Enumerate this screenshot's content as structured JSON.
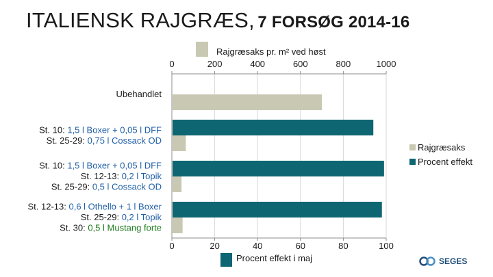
{
  "title_main": "ITALIENSK RAJGRÆS,",
  "title_sub": "7 FORSØG 2014-16",
  "logo_text": "SEGES",
  "colors": {
    "rajgraesaks": "#c9c8b2",
    "procent_effekt": "#0d6672",
    "text_green": "#1a7a1a",
    "text_blue": "#1f5fa8"
  },
  "chart_data": {
    "type": "bar",
    "orientation": "horizontal",
    "categories": [
      [
        {
          "text": "Ubehandlet",
          "color": "default"
        }
      ],
      [
        {
          "parts": [
            {
              "text": "St. 10: ",
              "color": "default"
            },
            {
              "text": "1,5 l Boxer + 0,05 l DFF",
              "color": "blue"
            }
          ]
        },
        {
          "parts": [
            {
              "text": "St. 25-29: ",
              "color": "default"
            },
            {
              "text": "0,75 l Cossack OD",
              "color": "blue"
            }
          ]
        }
      ],
      [
        {
          "parts": [
            {
              "text": "St. 10: ",
              "color": "default"
            },
            {
              "text": "1,5 l Boxer + 0,05 l DFF",
              "color": "blue"
            }
          ]
        },
        {
          "parts": [
            {
              "text": "St. 12-13: ",
              "color": "default"
            },
            {
              "text": "0,2 l Topik",
              "color": "blue"
            }
          ]
        },
        {
          "parts": [
            {
              "text": "St. 25-29: ",
              "color": "default"
            },
            {
              "text": "0,5 l Cossack OD",
              "color": "blue"
            }
          ]
        }
      ],
      [
        {
          "parts": [
            {
              "text": "St. 12-13: ",
              "color": "default"
            },
            {
              "text": "0,6 l Othello + 1 l Boxer",
              "color": "blue"
            }
          ]
        },
        {
          "parts": [
            {
              "text": "St. 25-29: ",
              "color": "default"
            },
            {
              "text": "0,2 l Topik",
              "color": "blue"
            }
          ]
        },
        {
          "parts": [
            {
              "text": "St. 30: ",
              "color": "default"
            },
            {
              "text": "0,5 l Mustang forte",
              "color": "green"
            }
          ]
        }
      ]
    ],
    "series": [
      {
        "name": "Rajgræsaks",
        "axis": "top",
        "values": [
          700,
          65,
          45,
          50
        ]
      },
      {
        "name": "Procent effekt",
        "axis": "bottom",
        "values": [
          null,
          94,
          99,
          98
        ]
      }
    ],
    "top_axis": {
      "label": "Rajgræsaks pr. m² ved høst",
      "ticks": [
        0,
        200,
        400,
        600,
        800,
        1000
      ],
      "range": [
        0,
        1000
      ]
    },
    "bottom_axis": {
      "label": "Procent effekt i maj",
      "ticks": [
        0,
        20,
        40,
        60,
        80,
        100
      ],
      "range": [
        0,
        100
      ]
    },
    "legend": [
      "Rajgræsaks",
      "Procent effekt"
    ],
    "legend_position": "right",
    "grid": true
  }
}
